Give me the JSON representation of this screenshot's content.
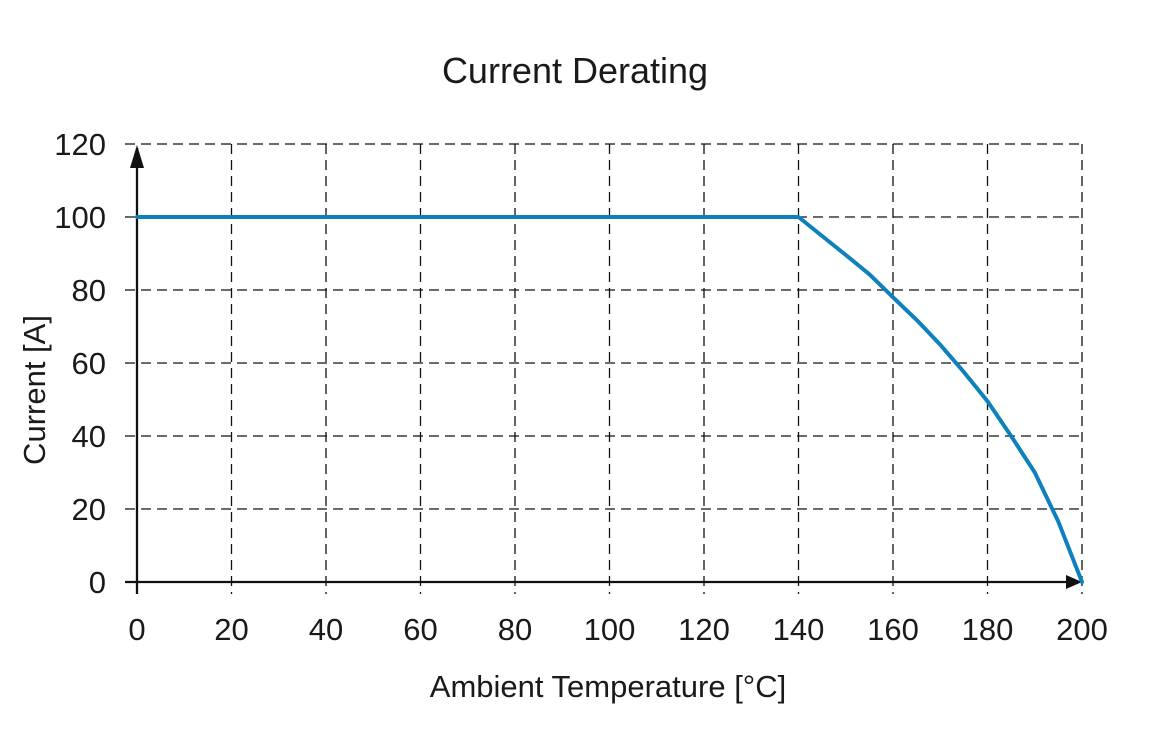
{
  "chart_data": {
    "type": "line",
    "title": "Current Derating",
    "xlabel": "Ambient Temperature [°C]",
    "ylabel": "Current [A]",
    "xlim": [
      0,
      200
    ],
    "ylim": [
      0,
      120
    ],
    "x_ticks": [
      0,
      20,
      40,
      60,
      80,
      100,
      120,
      140,
      160,
      180,
      200
    ],
    "y_ticks": [
      0,
      20,
      40,
      60,
      80,
      100,
      120
    ],
    "grid": "dashed",
    "legend_position": "none",
    "axis_arrows": true,
    "series": [
      {
        "name": "current-derating-curve",
        "color": "#0e81bc",
        "points": [
          [
            0,
            100
          ],
          [
            140,
            100
          ],
          [
            145,
            94.8
          ],
          [
            150,
            89.6
          ],
          [
            155,
            84.3
          ],
          [
            160,
            78
          ],
          [
            165,
            71.8
          ],
          [
            170,
            65
          ],
          [
            175,
            57.5
          ],
          [
            180,
            49.5
          ],
          [
            185,
            40
          ],
          [
            190,
            30
          ],
          [
            195,
            16.5
          ],
          [
            200,
            0
          ]
        ]
      }
    ],
    "colors": {
      "line": "#0e81bc",
      "grid": "#111111",
      "text": "#1a1a1a",
      "background": "#ffffff"
    }
  }
}
